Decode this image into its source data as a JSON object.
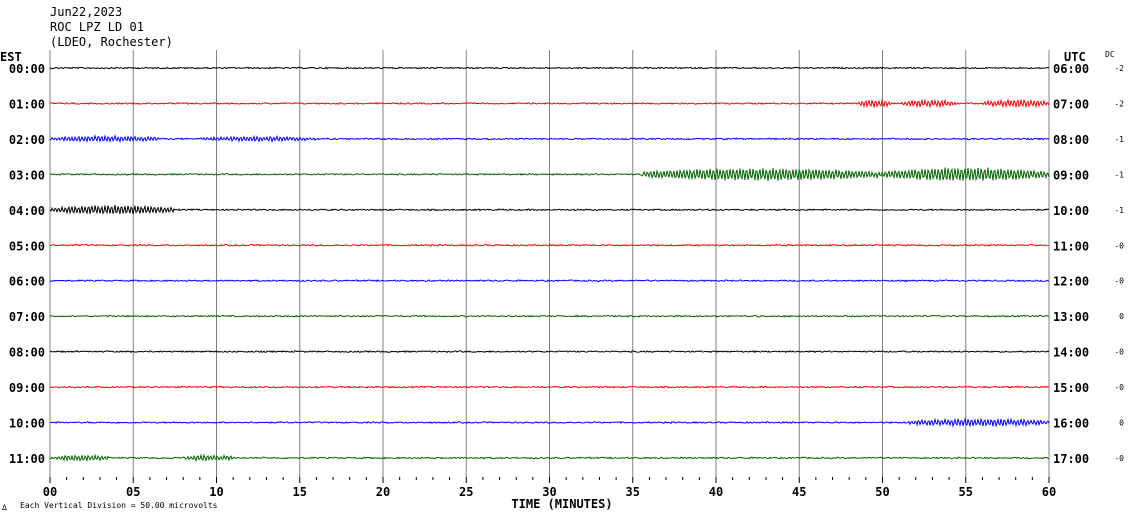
{
  "header": {
    "date": "Jun22,2023",
    "station": "ROC LPZ LD 01",
    "network": "(LDEO, Rochester)"
  },
  "labels": {
    "left_zone": "EST",
    "right_zone": "UTC",
    "dc": "DC",
    "x_axis_title": "TIME (MINUTES)",
    "footnote_mark": "∆",
    "footnote": "Each Vertical Division =   50.00 microvolts"
  },
  "colors": {
    "black": "#000000",
    "red": "#ff0000",
    "blue": "#0000ff",
    "green": "#006400",
    "grid": "#808080"
  },
  "chart_data": {
    "type": "line",
    "title": "Jun22,2023 ROC LPZ LD 01 (LDEO, Rochester)",
    "xlabel": "TIME (MINUTES)",
    "xlim": [
      0,
      60
    ],
    "x_ticks": [
      "00",
      "05",
      "10",
      "15",
      "20",
      "25",
      "30",
      "35",
      "40",
      "45",
      "50",
      "55",
      "60"
    ],
    "grid": "vertical every 5 minutes",
    "scale_note": "Each Vertical Division = 50.00 microvolts",
    "rows": [
      {
        "est": "00:00",
        "utc": "06:00",
        "dc": "-2",
        "color": "black",
        "bursts": []
      },
      {
        "est": "01:00",
        "utc": "07:00",
        "dc": "-2",
        "color": "red",
        "bursts": [
          [
            48.5,
            50.5,
            0.8
          ],
          [
            51,
            54.5,
            0.7
          ],
          [
            56,
            60,
            0.8
          ]
        ]
      },
      {
        "est": "02:00",
        "utc": "08:00",
        "dc": "-1",
        "color": "blue",
        "bursts": [
          [
            0,
            6.5,
            0.6
          ],
          [
            9,
            16,
            0.5
          ]
        ]
      },
      {
        "est": "03:00",
        "utc": "09:00",
        "dc": "-1",
        "color": "green",
        "bursts": [
          [
            35.5,
            50,
            1.4
          ],
          [
            50,
            60,
            1.5
          ]
        ]
      },
      {
        "est": "04:00",
        "utc": "10:00",
        "dc": "-1",
        "color": "black",
        "bursts": [
          [
            0,
            7.5,
            1.0
          ]
        ]
      },
      {
        "est": "05:00",
        "utc": "11:00",
        "dc": "-0",
        "color": "red",
        "bursts": []
      },
      {
        "est": "06:00",
        "utc": "12:00",
        "dc": "-0",
        "color": "blue",
        "bursts": []
      },
      {
        "est": "07:00",
        "utc": "13:00",
        "dc": "0",
        "color": "green",
        "bursts": []
      },
      {
        "est": "08:00",
        "utc": "14:00",
        "dc": "-0",
        "color": "black",
        "bursts": []
      },
      {
        "est": "09:00",
        "utc": "15:00",
        "dc": "-0",
        "color": "red",
        "bursts": []
      },
      {
        "est": "10:00",
        "utc": "16:00",
        "dc": "0",
        "color": "blue",
        "bursts": [
          [
            51.5,
            60,
            0.8
          ]
        ]
      },
      {
        "est": "11:00",
        "utc": "17:00",
        "dc": "-0",
        "color": "green",
        "bursts": [
          [
            0,
            3.5,
            0.6
          ],
          [
            8,
            11,
            0.6
          ]
        ]
      }
    ]
  }
}
